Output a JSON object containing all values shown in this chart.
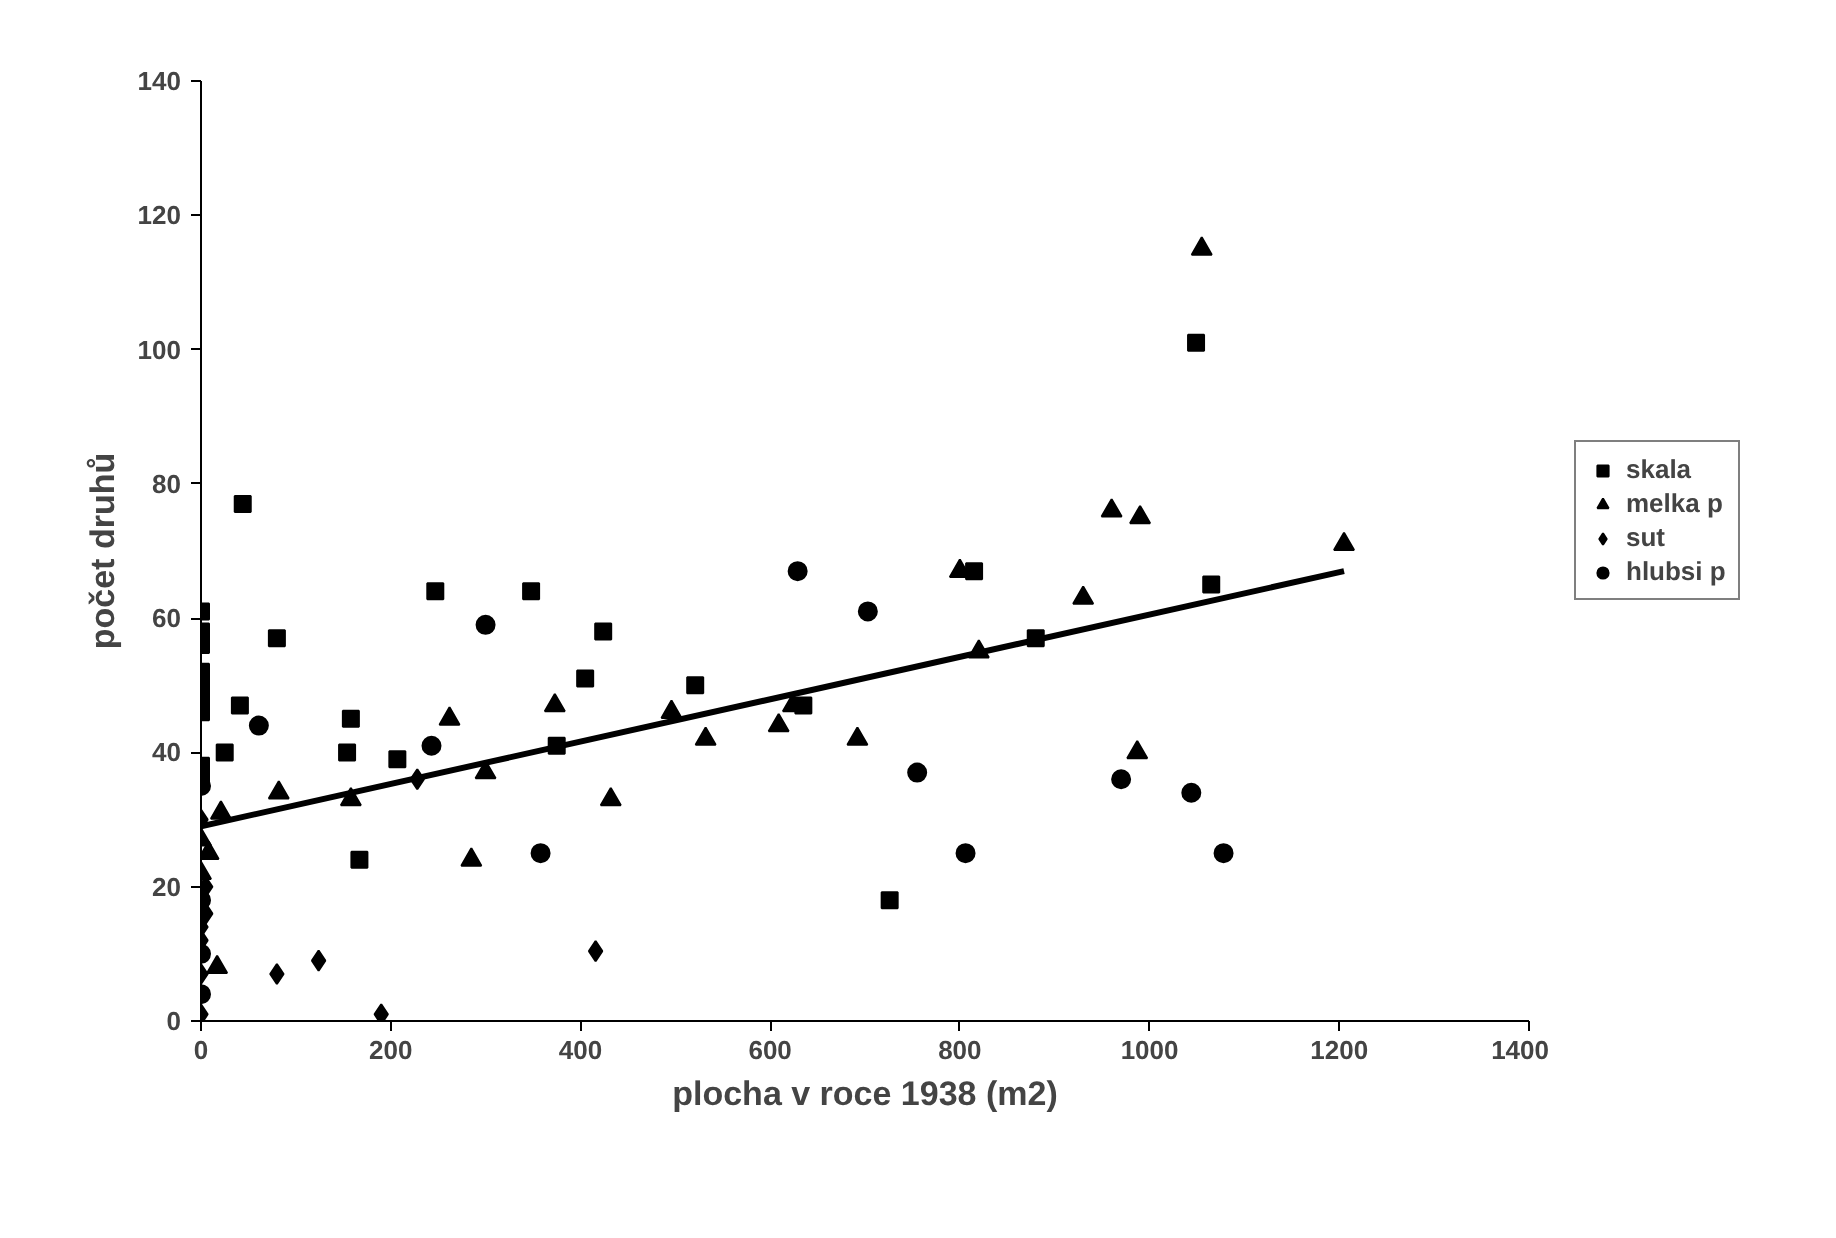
{
  "chart_data": {
    "type": "scatter",
    "xlabel": "plocha v roce 1938 (m2)",
    "ylabel": "počet druhů",
    "xlim": [
      0,
      1400
    ],
    "ylim": [
      0,
      140
    ],
    "xticks": [
      0,
      200,
      400,
      600,
      800,
      1000,
      1200,
      1400
    ],
    "yticks": [
      0,
      20,
      40,
      60,
      80,
      100,
      120,
      140
    ],
    "grid": false,
    "legend": "right",
    "series": [
      {
        "name": "skala",
        "color": "#000000",
        "marker": "square",
        "x": [
          0,
          0,
          0,
          0,
          0,
          0,
          0,
          0,
          0,
          44,
          80,
          41,
          25,
          158,
          154,
          207,
          167,
          247,
          348,
          424,
          405,
          375,
          521,
          635,
          726,
          815,
          880,
          1049,
          1065
        ],
        "values": [
          61,
          58,
          56,
          52,
          50,
          48,
          46,
          38,
          36,
          77,
          57,
          47,
          40,
          45,
          40,
          39,
          24,
          64,
          64,
          58,
          51,
          41,
          50,
          47,
          18,
          67,
          57,
          101,
          65
        ]
      },
      {
        "name": "melka p",
        "color": "#000000",
        "marker": "triangle",
        "x": [
          0,
          0,
          8,
          17,
          21,
          82,
          158,
          262,
          285,
          300,
          373,
          432,
          496,
          532,
          609,
          624,
          692,
          800,
          820,
          930,
          960,
          987,
          990,
          1055,
          1205
        ],
        "values": [
          27,
          22,
          25,
          8,
          31,
          34,
          33,
          45,
          24,
          37,
          47,
          33,
          46,
          42,
          44,
          47,
          42,
          67,
          55,
          63,
          76,
          40,
          75,
          115,
          71
        ]
      },
      {
        "name": "sut",
        "color": "#000000",
        "marker": "diamond",
        "x": [
          0,
          0,
          0,
          0,
          0,
          5,
          5,
          80,
          124,
          190,
          228,
          416
        ],
        "values": [
          30,
          14,
          12,
          7,
          1,
          16,
          20,
          7,
          9,
          1,
          36,
          10.4
        ]
      },
      {
        "name": "hlubsi p",
        "color": "#000000",
        "marker": "circle",
        "x": [
          0,
          0,
          0,
          0,
          61,
          243,
          300,
          358,
          629,
          703,
          755,
          806,
          970,
          1044,
          1078
        ],
        "values": [
          35,
          18,
          10,
          4,
          44,
          41,
          59,
          25,
          67,
          61,
          37,
          25,
          36,
          34,
          25
        ]
      },
      {
        "type": "line",
        "color": "#000000",
        "marker": "none",
        "x": [
          0,
          1205
        ],
        "values": [
          29,
          67
        ]
      }
    ]
  }
}
